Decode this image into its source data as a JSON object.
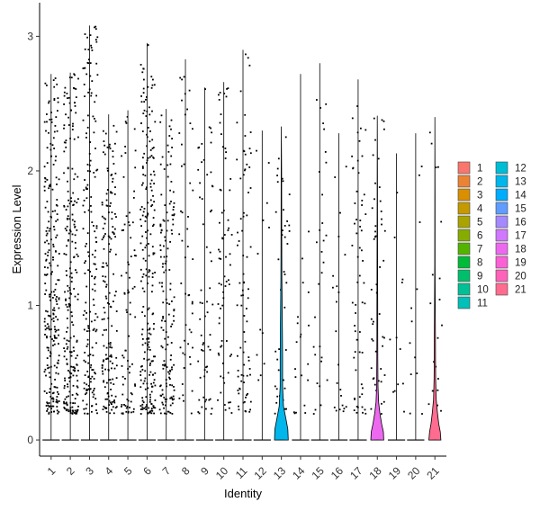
{
  "chart_data": {
    "type": "violin",
    "xlabel": "Identity",
    "ylabel": "Expression Level",
    "ylim": [
      -0.12,
      3.25
    ],
    "yticks": [
      0,
      1,
      2,
      3
    ],
    "categories": [
      "1",
      "2",
      "3",
      "4",
      "5",
      "6",
      "7",
      "8",
      "9",
      "10",
      "11",
      "12",
      "13",
      "14",
      "15",
      "16",
      "17",
      "18",
      "19",
      "20",
      "21"
    ],
    "colors": [
      "#F8766D",
      "#EB8335",
      "#DA8F00",
      "#C49A00",
      "#A9A400",
      "#86AC00",
      "#53B400",
      "#00BA38",
      "#00BE6C",
      "#00C094",
      "#00C0B8",
      "#00BDD6",
      "#00B6EB",
      "#00ACFC",
      "#619CFF",
      "#A58AFF",
      "#D078FF",
      "#EC69EF",
      "#FB61D7",
      "#FF63B9",
      "#FF6C90"
    ],
    "max_expression": [
      2.72,
      2.73,
      3.08,
      2.42,
      2.45,
      2.95,
      2.46,
      2.83,
      2.62,
      2.66,
      2.9,
      2.3,
      2.33,
      2.72,
      2.8,
      2.28,
      2.68,
      2.41,
      2.13,
      2.28,
      2.4
    ],
    "point_density": [
      240,
      230,
      180,
      170,
      80,
      230,
      150,
      50,
      60,
      70,
      80,
      12,
      45,
      20,
      30,
      22,
      60,
      50,
      12,
      12,
      20
    ],
    "violin_widths": [
      0.04,
      0.04,
      0.04,
      0.04,
      0.04,
      0.04,
      0.04,
      0.04,
      0.04,
      0.04,
      0.04,
      0.04,
      0.8,
      0.04,
      0.04,
      0.04,
      0.04,
      0.75,
      0.04,
      0.04,
      0.7
    ],
    "violin_shapes": {
      "13": [
        [
          0,
          0.8
        ],
        [
          0.08,
          0.75
        ],
        [
          0.15,
          0.55
        ],
        [
          0.25,
          0.25
        ],
        [
          0.4,
          0.14
        ],
        [
          0.6,
          0.14
        ],
        [
          0.8,
          0.12
        ],
        [
          1.0,
          0.09
        ],
        [
          1.2,
          0.06
        ],
        [
          1.4,
          0.05
        ],
        [
          1.7,
          0.04
        ],
        [
          2.0,
          0.03
        ],
        [
          2.33,
          0.0
        ]
      ],
      "18": [
        [
          0,
          0.75
        ],
        [
          0.06,
          0.7
        ],
        [
          0.12,
          0.5
        ],
        [
          0.2,
          0.3
        ],
        [
          0.28,
          0.15
        ],
        [
          0.4,
          0.08
        ],
        [
          0.6,
          0.06
        ],
        [
          0.8,
          0.05
        ],
        [
          1.0,
          0.05
        ],
        [
          1.2,
          0.04
        ],
        [
          1.6,
          0.03
        ],
        [
          2.0,
          0.02
        ],
        [
          2.41,
          0.0
        ]
      ],
      "21": [
        [
          0,
          0.7
        ],
        [
          0.06,
          0.62
        ],
        [
          0.12,
          0.45
        ],
        [
          0.2,
          0.3
        ],
        [
          0.3,
          0.16
        ],
        [
          0.45,
          0.09
        ],
        [
          0.6,
          0.07
        ],
        [
          0.8,
          0.06
        ],
        [
          1.0,
          0.04
        ],
        [
          1.3,
          0.02
        ],
        [
          1.8,
          0.015
        ],
        [
          2.4,
          0.0
        ]
      ]
    },
    "legend": {
      "position": "right",
      "columns": 2,
      "items": [
        "1",
        "2",
        "3",
        "4",
        "5",
        "6",
        "7",
        "8",
        "9",
        "10",
        "11",
        "12",
        "13",
        "14",
        "15",
        "16",
        "17",
        "18",
        "19",
        "20",
        "21"
      ]
    }
  }
}
